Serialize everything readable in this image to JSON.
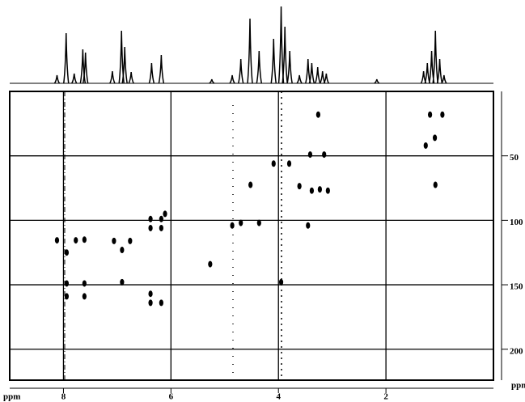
{
  "chart_data": {
    "type": "scatter",
    "x_label": "ppm",
    "y_label": "ppm",
    "xlim": [
      9,
      0
    ],
    "xticks": [
      8,
      6,
      4,
      2
    ],
    "ylim": [
      0,
      224
    ],
    "yticks": [
      50,
      100,
      150,
      200
    ],
    "grid": true,
    "color": "#000000",
    "x": [
      8.12,
      7.94,
      7.77,
      7.61,
      7.06,
      6.91,
      6.76,
      6.38,
      6.18,
      6.38,
      6.18,
      6.11,
      7.94,
      7.94,
      7.61,
      7.61,
      6.91,
      6.38,
      6.18,
      6.38,
      4.52,
      4.7,
      4.36,
      4.09,
      3.95,
      3.8,
      3.26,
      3.41,
      3.15,
      3.61,
      3.38,
      3.23,
      3.08,
      3.45,
      1.08,
      1.18,
      0.95,
      1.26,
      1.09,
      5.27,
      4.86
    ],
    "y": [
      115.5,
      125,
      115.5,
      115,
      116,
      123,
      116,
      99,
      99,
      106,
      106,
      95,
      149,
      159,
      149,
      159,
      148,
      157,
      164,
      164,
      72.5,
      102,
      102,
      56,
      148,
      56,
      18,
      49,
      49,
      73.5,
      77,
      76,
      77,
      104,
      72.5,
      18,
      18,
      42,
      36,
      134,
      104
    ],
    "projection": {
      "x": [
        8.12,
        7.95,
        7.8,
        7.64,
        7.59,
        7.09,
        6.92,
        6.86,
        6.74,
        6.36,
        6.18,
        5.24,
        4.86,
        4.7,
        4.53,
        4.36,
        4.09,
        3.95,
        3.88,
        3.79,
        3.61,
        3.45,
        3.38,
        3.27,
        3.18,
        3.11,
        2.17,
        1.3,
        1.23,
        1.15,
        1.08,
        1.0,
        0.92
      ],
      "heights": [
        10,
        62,
        12,
        42,
        38,
        15,
        65,
        45,
        14,
        25,
        35,
        5,
        10,
        30,
        80,
        40,
        55,
        95,
        70,
        40,
        10,
        30,
        25,
        20,
        15,
        12,
        5,
        15,
        25,
        40,
        65,
        30,
        10
      ]
    }
  }
}
